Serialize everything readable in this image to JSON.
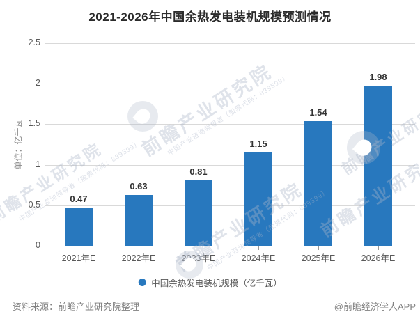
{
  "title": "2021-2026年中国余热发电装机规模预测情况",
  "y_axis_unit": "单位：亿千瓦",
  "legend": {
    "label": "中国余热发电装机规模（亿千瓦）",
    "marker_color": "#2878BE"
  },
  "footer": {
    "source": "资料来源：前瞻产业研究院整理",
    "credit": "@前瞻经济学人APP"
  },
  "watermark": {
    "brand": "前瞻产业研究院",
    "tagline": "中国产业咨询领导者（股票代码：839599）"
  },
  "colors": {
    "bar": "#2878BE",
    "grid": "#D9D9D9",
    "axis_line": "#ABABAB",
    "tick": "#999999",
    "title": "#2B2B2B",
    "axis_label": "#595959",
    "value_label": "#333333",
    "footer": "#808080"
  },
  "chart_data": {
    "type": "bar",
    "title": "2021-2026年中国余热发电装机规模预测情况",
    "categories": [
      "2021年E",
      "2022年E",
      "2023年E",
      "2024年E",
      "2025年E",
      "2026年E"
    ],
    "values": [
      0.47,
      0.63,
      0.81,
      1.15,
      1.54,
      1.98
    ],
    "value_labels": [
      "0.47",
      "0.63",
      "0.81",
      "1.15",
      "1.54",
      "1.98"
    ],
    "series_name": "中国余热发电装机规模（亿千瓦）",
    "xlabel": "",
    "ylabel": "单位：亿千瓦",
    "ylim": [
      0,
      2.5
    ],
    "ytick_values": [
      0,
      0.5,
      1,
      1.5,
      2,
      2.5
    ],
    "ytick_labels": [
      "0",
      "0.5",
      "1",
      "1.5",
      "2",
      "2.5"
    ],
    "grid": true,
    "legend_position": "bottom"
  }
}
